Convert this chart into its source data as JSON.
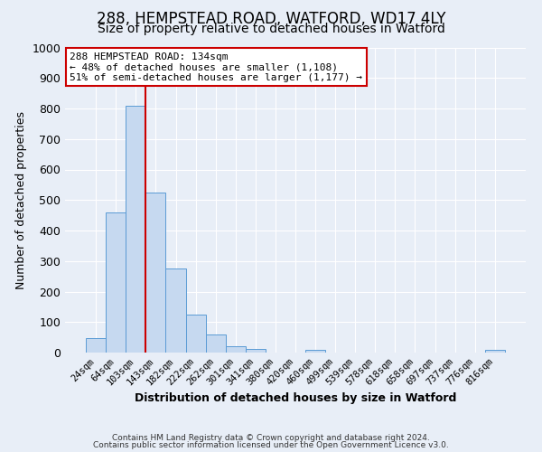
{
  "title1": "288, HEMPSTEAD ROAD, WATFORD, WD17 4LY",
  "title2": "Size of property relative to detached houses in Watford",
  "xlabel": "Distribution of detached houses by size in Watford",
  "ylabel": "Number of detached properties",
  "bar_labels": [
    "24sqm",
    "64sqm",
    "103sqm",
    "143sqm",
    "182sqm",
    "222sqm",
    "262sqm",
    "301sqm",
    "341sqm",
    "380sqm",
    "420sqm",
    "460sqm",
    "499sqm",
    "539sqm",
    "578sqm",
    "618sqm",
    "658sqm",
    "697sqm",
    "737sqm",
    "776sqm",
    "816sqm"
  ],
  "bar_heights": [
    47,
    460,
    810,
    525,
    275,
    125,
    58,
    22,
    12,
    0,
    0,
    8,
    0,
    0,
    0,
    0,
    0,
    0,
    0,
    0,
    10
  ],
  "bar_color": "#c6d9f0",
  "bar_edge_color": "#5b9bd5",
  "ylim": [
    0,
    1000
  ],
  "yticks": [
    0,
    100,
    200,
    300,
    400,
    500,
    600,
    700,
    800,
    900,
    1000
  ],
  "vline_x_index": 3,
  "vline_color": "#cc0000",
  "annotation_title": "288 HEMPSTEAD ROAD: 134sqm",
  "annotation_line1": "← 48% of detached houses are smaller (1,108)",
  "annotation_line2": "51% of semi-detached houses are larger (1,177) →",
  "annotation_box_color": "#ffffff",
  "annotation_border_color": "#cc0000",
  "footer1": "Contains HM Land Registry data © Crown copyright and database right 2024.",
  "footer2": "Contains public sector information licensed under the Open Government Licence v3.0.",
  "bg_color": "#e8eef7",
  "plot_bg_color": "#e8eef7",
  "grid_color": "#ffffff",
  "title1_fontsize": 12,
  "title2_fontsize": 10
}
